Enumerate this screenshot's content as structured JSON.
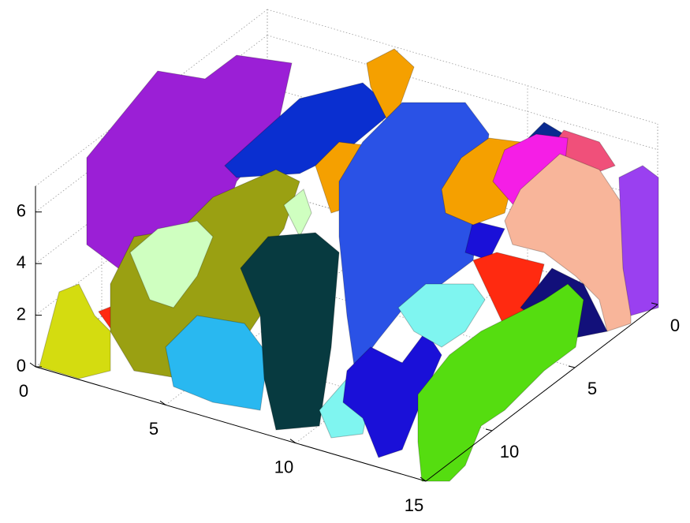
{
  "chart_data": {
    "type": "voxel",
    "xlim": [
      0,
      15
    ],
    "ylim": [
      0,
      14
    ],
    "zlim": [
      0,
      7
    ],
    "xticks": [
      0,
      5,
      10,
      15
    ],
    "yticks": [
      0,
      5,
      10
    ],
    "zticks": [
      0,
      2,
      4,
      6
    ],
    "grid": true
  }
}
